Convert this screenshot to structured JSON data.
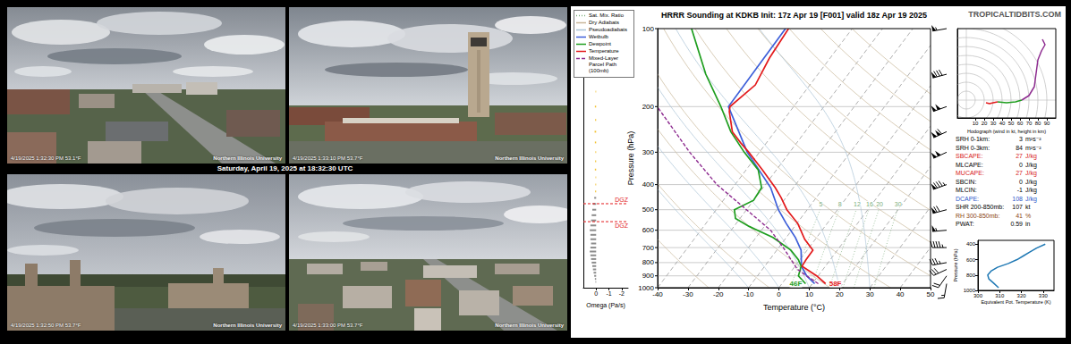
{
  "webcams": {
    "caption": "Saturday, April 19, 2025 at 18:32:30 UTC",
    "panels": [
      {
        "timestamp": "4/19/2025 1:32:30 PM 53.1°F",
        "logo": "Northern Illinois University"
      },
      {
        "timestamp": "4/19/2025 1:33:10 PM 53.7°F",
        "logo": "Northern Illinois University"
      },
      {
        "timestamp": "4/19/2025 1:32:50 PM 53.7°F",
        "logo": "Northern Illinois University"
      },
      {
        "timestamp": "4/19/2025 1:33:00 PM 53.7°F",
        "logo": "Northern Illinois University"
      }
    ]
  },
  "site": "TROPICALTIDBITS.COM",
  "parameters": [
    {
      "label": "SRH 0-1km:",
      "value": 3,
      "unit": "m²s⁻²",
      "color": "#000000"
    },
    {
      "label": "SRH 0-3km:",
      "value": 84,
      "unit": "m²s⁻²",
      "color": "#000000"
    },
    {
      "label": "SBCAPE:",
      "value": 27,
      "unit": "J/kg",
      "color": "#d7191c"
    },
    {
      "label": "MLCAPE:",
      "value": 0,
      "unit": "J/kg",
      "color": "#000000"
    },
    {
      "label": "MUCAPE:",
      "value": 27,
      "unit": "J/kg",
      "color": "#d7191c"
    },
    {
      "label": "SBCIN:",
      "value": 0,
      "unit": "J/kg",
      "color": "#000000"
    },
    {
      "label": "MLCIN:",
      "value": -1,
      "unit": "J/kg",
      "color": "#000000"
    },
    {
      "label": "DCAPE:",
      "value": 108,
      "unit": "J/kg",
      "color": "#2c56c9"
    },
    {
      "label": "SHR 200-850mb:",
      "value": 107,
      "unit": "kt",
      "color": "#000000"
    },
    {
      "label": "RH 300-850mb:",
      "value": 41,
      "unit": "%",
      "color": "#8b4513"
    },
    {
      "label": "PWAT:",
      "value": 0.59,
      "unit": "in",
      "color": "#000000"
    }
  ],
  "chart_data": [
    {
      "type": "skewt",
      "title": "HRRR Sounding at KDKB Init: 17z Apr 19 [F001] valid 18z Apr 19 2025",
      "xlabel": "Temperature (°C)",
      "ylabel": "Pressure (hPa)",
      "log": "y",
      "grid": true,
      "legend": "upper left",
      "xlim": [
        -40,
        50
      ],
      "xticks": [
        -40,
        -30,
        -20,
        -10,
        0,
        10,
        20,
        30,
        40,
        50
      ],
      "ylim": [
        1000,
        100
      ],
      "yticks": [
        1000,
        900,
        800,
        700,
        600,
        500,
        400,
        300,
        200,
        100
      ],
      "reference_lines": [
        {
          "name": "Sat. Mix. Ratio",
          "type": "mixing_ratio",
          "color": "#7cae7c",
          "line_style": "dotted",
          "values": [
            5,
            8,
            12,
            16,
            20,
            30
          ]
        },
        {
          "name": "Dry Adiabats",
          "type": "dry_adiabat",
          "color": "#c9b79a",
          "line_style": "solid",
          "values": [
            250,
            270,
            290,
            310,
            330,
            350,
            370,
            390,
            410,
            430,
            450
          ]
        },
        {
          "name": "Pseudoadiabats",
          "type": "moist_adiabat",
          "color": "#a9c3d6",
          "line_style": "solid",
          "values": [
            -10,
            0,
            10,
            20,
            30
          ]
        }
      ],
      "series": [
        {
          "name": "Wetbulb",
          "color": "#3d5fd9",
          "line_style": "solid",
          "y": [
            965,
            900,
            826,
            716,
            640,
            565,
            500,
            411,
            300,
            200,
            100
          ],
          "x": [
            10.8,
            6.2,
            2.1,
            -2.0,
            -7.0,
            -13.5,
            -19.5,
            -27.5,
            -44.0,
            -61.5,
            -62.0
          ]
        },
        {
          "name": "Dewpoint",
          "color": "#1e9e1e",
          "line_style": "solid",
          "surface_label": "46F",
          "y": [
            965,
            900,
            826,
            780,
            716,
            640,
            580,
            540,
            500,
            460,
            411,
            351,
            300,
            250,
            200,
            150,
            100
          ],
          "x": [
            7.8,
            3.5,
            2.0,
            -0.5,
            -5.4,
            -14.4,
            -25.0,
            -31.5,
            -34.0,
            -30.0,
            -30.5,
            -36.0,
            -45.0,
            -54.5,
            -64.0,
            -77.0,
            -93.0
          ]
        },
        {
          "name": "Temperature",
          "color": "#e31a1c",
          "line_style": "solid",
          "surface_label": "58F",
          "y": [
            965,
            900,
            826,
            780,
            716,
            650,
            565,
            500,
            450,
            411,
            351,
            300,
            276,
            250,
            209,
            200,
            165,
            130,
            100
          ],
          "x": [
            14.4,
            9.5,
            2.3,
            2.0,
            1.9,
            -3.5,
            -9.7,
            -16.7,
            -21.5,
            -26.0,
            -34.6,
            -43.5,
            -48.5,
            -54.0,
            -60.0,
            -61.0,
            -58.0,
            -60.0,
            -61.0
          ]
        },
        {
          "name": "Mixed-Layer Parcel Path (100mb)",
          "color": "#8e2c90",
          "line_style": "dashed",
          "y": [
            965,
            900,
            850,
            800,
            700,
            600,
            500,
            400,
            300,
            200
          ],
          "x": [
            12.0,
            6.2,
            1.6,
            -1.6,
            -8.5,
            -17.0,
            -30.0,
            -46.0,
            -63.0,
            -85.0
          ]
        }
      ],
      "wind_barbs": {
        "y": [
          965,
          900,
          850,
          800,
          700,
          600,
          500,
          400,
          300,
          250,
          200,
          150,
          100
        ],
        "speed": [
          15,
          20,
          30,
          35,
          45,
          55,
          70,
          85,
          100,
          110,
          100,
          80,
          55
        ],
        "direction": [
          190,
          215,
          245,
          260,
          270,
          265,
          255,
          250,
          245,
          245,
          250,
          255,
          260
        ]
      }
    },
    {
      "type": "bar",
      "orientation": "horizontal",
      "xlabel": "Omega (Pa/s)",
      "xlim": [
        1,
        -2.5
      ],
      "xticks": [
        0,
        -1,
        -2
      ],
      "ylim": [
        1000,
        100
      ],
      "log": "y",
      "tick_labels": "x",
      "y": [
        175,
        200,
        225,
        250,
        275,
        300,
        325,
        350,
        375,
        400,
        425,
        450,
        475,
        500,
        525,
        550,
        575,
        600,
        625,
        650,
        675,
        700,
        725,
        750,
        775,
        800,
        825,
        850,
        875,
        900,
        925,
        950
      ],
      "values": [
        0.05,
        0.1,
        0.08,
        0.12,
        0.1,
        0.06,
        0.08,
        0.1,
        0.05,
        0.06,
        0.08,
        0.15,
        0.25,
        0.3,
        0.35,
        0.4,
        0.45,
        0.5,
        0.45,
        0.45,
        0.4,
        0.45,
        0.5,
        0.45,
        0.4,
        0.35,
        0.3,
        0.25,
        0.2,
        0.15,
        0.1,
        0.05
      ],
      "colors": [
        "#f2c12e",
        "#f2c12e",
        "#f2c12e",
        "#f2c12e",
        "#f2c12e",
        "#f2c12e",
        "#f2c12e",
        "#f2c12e",
        "#f2c12e",
        "#f2c12e",
        "#f2c12e",
        "#8c8c8c",
        "#8c8c8c",
        "#8c8c8c",
        "#8c8c8c",
        "#8c8c8c",
        "#8c8c8c",
        "#8c8c8c",
        "#8c8c8c",
        "#8c8c8c",
        "#8c8c8c",
        "#8c8c8c",
        "#8c8c8c",
        "#8c8c8c",
        "#8c8c8c",
        "#8c8c8c",
        "#8c8c8c",
        "#8c8c8c",
        "#8c8c8c",
        "#8c8c8c",
        "#8c8c8c",
        "#8c8c8c"
      ],
      "dgz": {
        "label": "DGZ",
        "y": [
          474,
          556
        ],
        "color": "#e31a1c"
      }
    },
    {
      "type": "hodograph",
      "xlabel": "Hodograph (wind in kt, height in km)",
      "xlim": [
        -10,
        100
      ],
      "xticks": [
        10,
        20,
        30,
        40,
        50,
        60,
        70,
        80,
        90
      ],
      "ylim": [
        -20,
        80
      ],
      "tick_labels": "x",
      "series": [
        {
          "color": "#e31a1c",
          "x": [
            22,
            26,
            30,
            35
          ],
          "values": [
            -3,
            -4,
            -3,
            -2
          ]
        },
        {
          "color": "#1e9e1e",
          "x": [
            35,
            45,
            55,
            62
          ],
          "values": [
            -2,
            -3,
            -2,
            0
          ]
        },
        {
          "color": "#8e2c90",
          "x": [
            62,
            70,
            76,
            78,
            80,
            84,
            88,
            85
          ],
          "values": [
            0,
            5,
            15,
            30,
            45,
            55,
            62,
            68
          ]
        }
      ]
    },
    {
      "type": "line",
      "xlabel": "Equivalent Pot. Temperature (K)",
      "ylabel": "Pressure (hPa)",
      "xlim": [
        300,
        335
      ],
      "xticks": [
        300,
        310,
        320,
        330
      ],
      "ylim": [
        1000,
        350
      ],
      "yticks": [
        1000,
        800,
        600,
        400
      ],
      "color": "#1f78b4",
      "x": [
        309.5,
        307,
        305,
        304.5,
        306,
        309,
        314,
        318,
        321,
        324,
        327,
        331
      ],
      "y": [
        965,
        900,
        850,
        800,
        750,
        700,
        650,
        600,
        550,
        500,
        450,
        400
      ]
    }
  ]
}
